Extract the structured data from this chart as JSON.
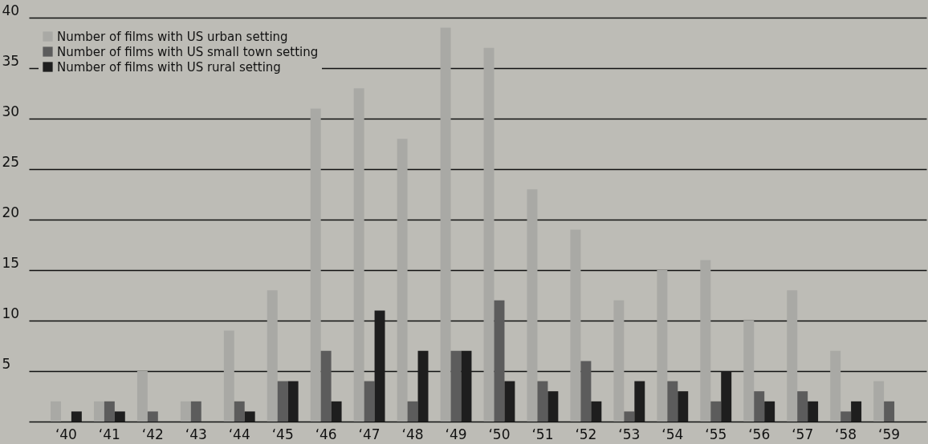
{
  "chart_data": {
    "type": "bar",
    "categories": [
      "‘40",
      "‘41",
      "‘42",
      "‘43",
      "‘44",
      "‘45",
      "‘46",
      "‘47",
      "‘48",
      "‘49",
      "‘50",
      "‘51",
      "‘52",
      "‘53",
      "‘54",
      "‘55",
      "‘56",
      "‘57",
      "‘58",
      "‘59"
    ],
    "series": [
      {
        "name": "Number of films with US urban setting",
        "color": "#a9a9a5",
        "values": [
          2,
          2,
          5,
          2,
          9,
          13,
          31,
          33,
          28,
          39,
          37,
          23,
          19,
          12,
          15,
          16,
          10,
          13,
          7,
          4
        ]
      },
      {
        "name": "Number of films with US small town setting",
        "color": "#5c5c5c",
        "values": [
          0,
          2,
          1,
          2,
          2,
          4,
          7,
          4,
          2,
          7,
          12,
          4,
          6,
          1,
          4,
          2,
          3,
          3,
          1,
          2
        ]
      },
      {
        "name": "Number of films with US rural setting",
        "color": "#1e1e1e",
        "values": [
          1,
          1,
          0,
          0,
          1,
          4,
          2,
          11,
          7,
          7,
          4,
          3,
          2,
          4,
          3,
          5,
          2,
          2,
          2,
          0
        ]
      }
    ],
    "ylim": [
      0,
      40
    ],
    "yticks": [
      5,
      10,
      15,
      20,
      25,
      30,
      35,
      40
    ],
    "grid": "y",
    "legend": "top left"
  }
}
